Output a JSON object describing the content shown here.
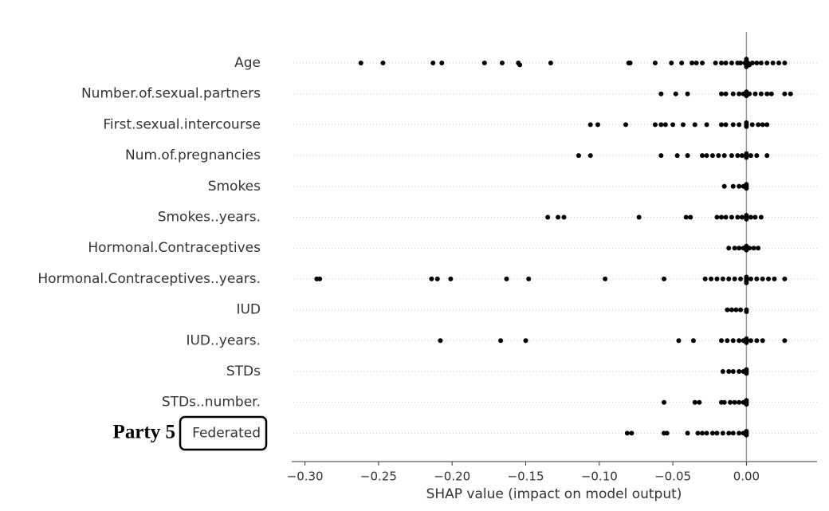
{
  "chart_data": {
    "type": "beeswarm",
    "xlabel": "SHAP value (impact on model output)",
    "annotation": "Party 5",
    "color": "#000000",
    "categories": [
      "Age",
      "Number.of.sexual.partners",
      "First.sexual.intercourse",
      "Num.of.pregnancies",
      "Smokes",
      "Smokes..years.",
      "Hormonal.Contraceptives",
      "Hormonal.Contraceptives..years.",
      "IUD",
      "IUD..years.",
      "STDs",
      "STDs..number.",
      "Federated"
    ],
    "values": [
      [
        -0.262,
        -0.247,
        -0.213,
        -0.207,
        -0.178,
        -0.166,
        -0.155,
        -0.154,
        -0.133,
        -0.08,
        -0.079,
        -0.062,
        -0.051,
        -0.044,
        -0.037,
        -0.034,
        -0.03,
        -0.021,
        -0.017,
        -0.014,
        -0.01,
        -0.006,
        -0.004,
        -0.001,
        0,
        0,
        0,
        0,
        0.001,
        0.002,
        0.004,
        0.007,
        0.01,
        0.014,
        0.018,
        0.022,
        0.026
      ],
      [
        -0.058,
        -0.048,
        -0.04,
        -0.017,
        -0.014,
        -0.009,
        -0.005,
        -0.002,
        0,
        0,
        0,
        0.002,
        0.006,
        0.01,
        0.014,
        0.017,
        0.026,
        0.03
      ],
      [
        -0.106,
        -0.101,
        -0.082,
        -0.062,
        -0.058,
        -0.055,
        -0.05,
        -0.043,
        -0.035,
        -0.027,
        -0.017,
        -0.014,
        -0.009,
        -0.005,
        0,
        0,
        0,
        0.004,
        0.008,
        0.011,
        0.014
      ],
      [
        -0.114,
        -0.106,
        -0.058,
        -0.047,
        -0.04,
        -0.03,
        -0.027,
        -0.023,
        -0.019,
        -0.015,
        -0.01,
        -0.006,
        -0.003,
        0,
        0,
        0,
        0.003,
        0.007,
        0.014
      ],
      [
        -0.015,
        -0.009,
        -0.005,
        -0.002,
        0,
        0,
        0
      ],
      [
        -0.135,
        -0.128,
        -0.124,
        -0.073,
        -0.041,
        -0.038,
        -0.02,
        -0.017,
        -0.014,
        -0.01,
        -0.006,
        -0.003,
        0,
        0,
        0,
        0.003,
        0.006,
        0.01
      ],
      [
        -0.012,
        -0.008,
        -0.005,
        -0.002,
        0,
        0,
        0,
        0.002,
        0.005,
        0.008
      ],
      [
        -0.292,
        -0.29,
        -0.214,
        -0.21,
        -0.201,
        -0.163,
        -0.148,
        -0.096,
        -0.056,
        -0.028,
        -0.024,
        -0.02,
        -0.016,
        -0.012,
        -0.008,
        -0.004,
        0,
        0,
        0,
        0,
        0.003,
        0.007,
        0.011,
        0.015,
        0.019,
        0.026
      ],
      [
        -0.013,
        -0.01,
        -0.007,
        -0.004,
        0,
        0
      ],
      [
        -0.208,
        -0.167,
        -0.15,
        -0.046,
        -0.036,
        -0.017,
        -0.013,
        -0.009,
        -0.005,
        -0.002,
        0,
        0,
        0,
        0.003,
        0.007,
        0.011,
        0.026
      ],
      [
        -0.016,
        -0.012,
        -0.009,
        -0.005,
        -0.002,
        0,
        0,
        0
      ],
      [
        -0.056,
        -0.035,
        -0.032,
        -0.017,
        -0.015,
        -0.011,
        -0.008,
        -0.005,
        -0.002,
        0,
        0,
        0
      ],
      [
        -0.081,
        -0.078,
        -0.056,
        -0.054,
        -0.04,
        -0.033,
        -0.03,
        -0.027,
        -0.023,
        -0.02,
        -0.016,
        -0.012,
        -0.009,
        -0.005,
        -0.002,
        0,
        0,
        0
      ]
    ],
    "xlim": [
      -0.309,
      0.048
    ],
    "xticks": [
      {
        "value": -0.3,
        "label": "−0.30"
      },
      {
        "value": -0.25,
        "label": "−0.25"
      },
      {
        "value": -0.2,
        "label": "−0.20"
      },
      {
        "value": -0.15,
        "label": "−0.15"
      },
      {
        "value": -0.1,
        "label": "−0.10"
      },
      {
        "value": -0.05,
        "label": "−0.05"
      },
      {
        "value": 0,
        "label": "0.00"
      }
    ],
    "grid": true
  }
}
